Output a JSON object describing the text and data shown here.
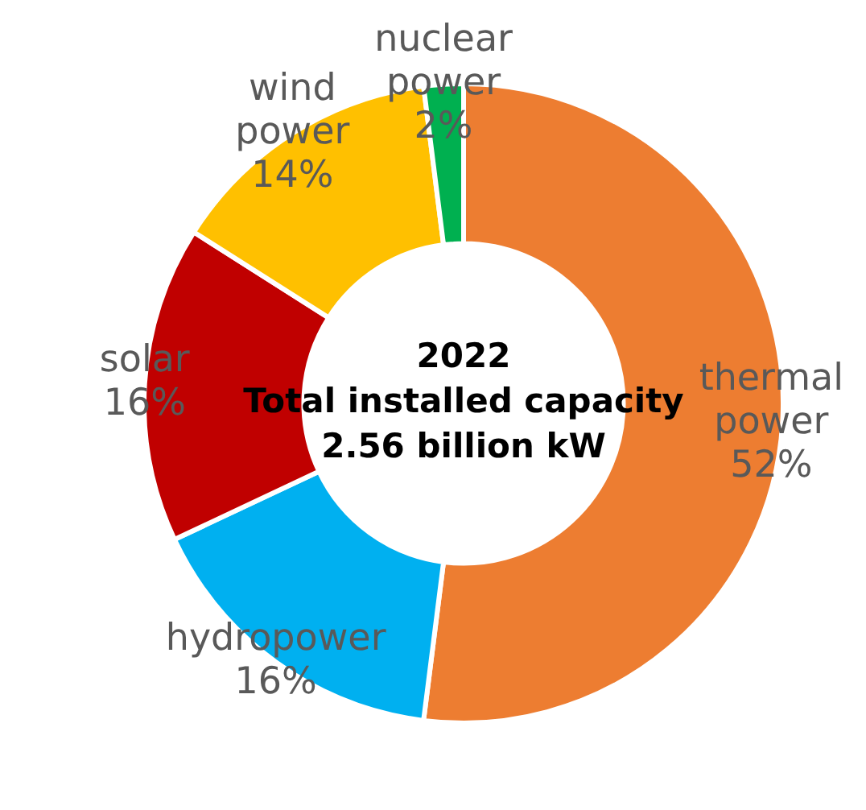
{
  "chart_data": {
    "type": "donut",
    "categories": [
      "thermal power",
      "hydropower",
      "solar",
      "wind power",
      "nuclear power"
    ],
    "values": [
      52,
      16,
      16,
      14,
      2
    ],
    "value_labels": [
      "52%",
      "16%",
      "16%",
      "14%",
      "2%"
    ],
    "colors": [
      "#ed7d31",
      "#00b0f0",
      "#c00000",
      "#ffc000",
      "#00b050"
    ],
    "annotations": [
      "2022",
      "Total installed capacity",
      "2.56 billion kW"
    ],
    "legend": false
  }
}
